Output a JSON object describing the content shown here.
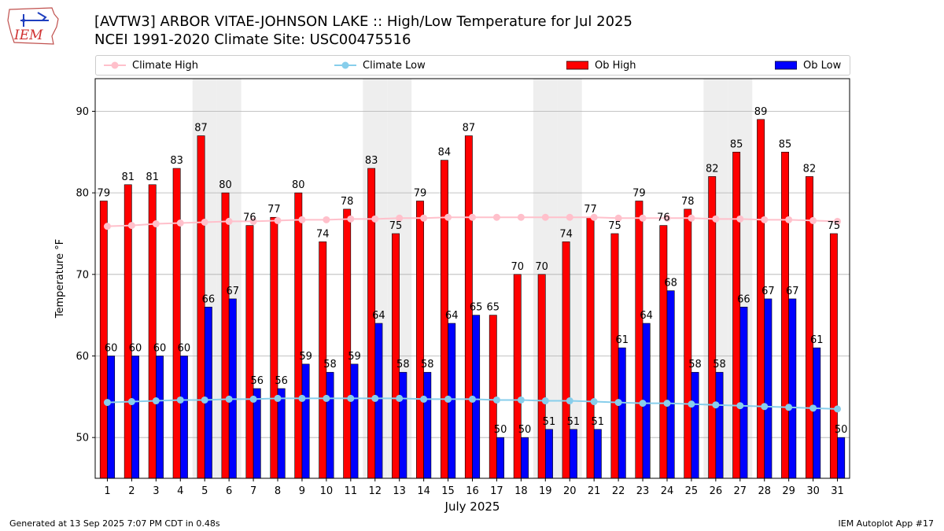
{
  "logo": {
    "text": "IEM"
  },
  "header": {
    "title_line1": "[AVTW3] ARBOR VITAE-JOHNSON LAKE :: High/Low Temperature for Jul 2025",
    "title_line2": "NCEI 1991-2020 Climate Site: USC00475516"
  },
  "footer": {
    "left": "Generated at 13 Sep 2025 7:07 PM CDT in 0.48s",
    "right": "IEM Autoplot App #17"
  },
  "chart_data": {
    "type": "bar",
    "xlabel": "July 2025",
    "ylabel": "Temperature °F",
    "ylim": [
      45,
      94
    ],
    "yticks": [
      50,
      60,
      70,
      80,
      90
    ],
    "grid": true,
    "legend_position": "top",
    "categories": [
      "1",
      "2",
      "3",
      "4",
      "5",
      "6",
      "7",
      "8",
      "9",
      "10",
      "11",
      "12",
      "13",
      "14",
      "15",
      "16",
      "17",
      "18",
      "19",
      "20",
      "21",
      "22",
      "23",
      "24",
      "25",
      "26",
      "27",
      "28",
      "29",
      "30",
      "31"
    ],
    "weekend_days": [
      5,
      6,
      12,
      13,
      19,
      20,
      26,
      27
    ],
    "series": [
      {
        "name": "Ob High",
        "kind": "bar",
        "color": "#ff0000",
        "values": [
          79,
          81,
          81,
          83,
          87,
          80,
          76,
          77,
          80,
          74,
          78,
          83,
          75,
          79,
          84,
          87,
          65,
          70,
          70,
          74,
          77,
          75,
          79,
          76,
          78,
          82,
          85,
          89,
          85,
          82,
          75
        ]
      },
      {
        "name": "Ob Low",
        "kind": "bar",
        "color": "#0000ff",
        "values": [
          60,
          60,
          60,
          60,
          66,
          67,
          56,
          56,
          59,
          58,
          59,
          64,
          58,
          58,
          64,
          65,
          50,
          50,
          51,
          51,
          51,
          61,
          64,
          68,
          58,
          58,
          66,
          67,
          67,
          61,
          50
        ]
      },
      {
        "name": "Climate High",
        "kind": "line",
        "color": "#ffc0cb",
        "values": [
          75.9,
          76.0,
          76.2,
          76.3,
          76.4,
          76.5,
          76.5,
          76.6,
          76.7,
          76.7,
          76.8,
          76.8,
          76.9,
          76.9,
          77.0,
          77.0,
          77.0,
          77.0,
          77.0,
          77.0,
          77.0,
          76.9,
          76.9,
          76.9,
          76.9,
          76.8,
          76.8,
          76.7,
          76.7,
          76.6,
          76.5
        ]
      },
      {
        "name": "Climate Low",
        "kind": "line",
        "color": "#87ceeb",
        "values": [
          54.3,
          54.4,
          54.5,
          54.6,
          54.6,
          54.7,
          54.7,
          54.8,
          54.8,
          54.8,
          54.8,
          54.8,
          54.8,
          54.7,
          54.7,
          54.7,
          54.6,
          54.6,
          54.5,
          54.5,
          54.4,
          54.3,
          54.2,
          54.2,
          54.1,
          54.0,
          53.9,
          53.8,
          53.7,
          53.6,
          53.5
        ]
      }
    ],
    "legend": [
      "Climate High",
      "Climate Low",
      "Ob High",
      "Ob Low"
    ]
  }
}
